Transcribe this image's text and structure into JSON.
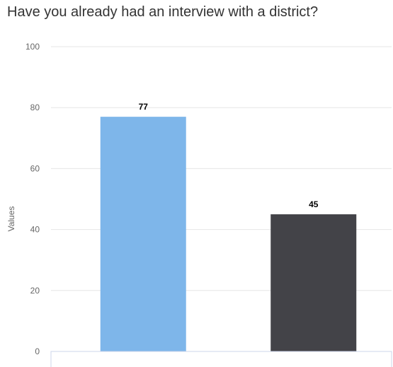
{
  "chart_data": {
    "type": "bar",
    "title": "Have you already had an interview with a district?",
    "ylabel": "Values",
    "xlabel": "",
    "categories": [
      "",
      ""
    ],
    "values": [
      77,
      45
    ],
    "data_labels": [
      "77",
      "45"
    ],
    "colors": [
      "#7eb6ea",
      "#434348"
    ],
    "ylim": [
      0,
      100
    ],
    "yticks": [
      "0",
      "20",
      "40",
      "60",
      "80",
      "100"
    ],
    "grid": true
  }
}
